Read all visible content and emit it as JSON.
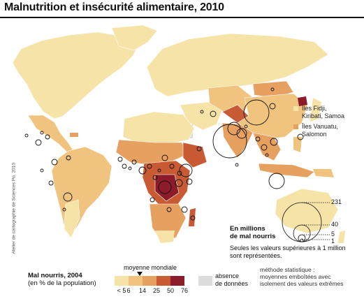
{
  "title": "Malnutrition et insécurité alimentaire, 2010",
  "credit": "Atelier de cartographie de Sciences Po, 2010",
  "islands": [
    {
      "label_lines": [
        "Îles Fidji,",
        "Kiribati, Samoa"
      ],
      "color": "#f6e3a8"
    },
    {
      "label_lines": [
        "Îles Vanuatu,",
        "Salomon"
      ],
      "color": "#e6a060"
    }
  ],
  "legend": {
    "title": "Mal nourris, 2004",
    "subtitle": "(en % de la population)",
    "average_label": "moyenne mondiale",
    "classes": [
      {
        "tick": "< 5",
        "color": "#f6e3a8"
      },
      {
        "tick": "6",
        "color": "#f0c47f"
      },
      {
        "tick": "14",
        "color": "#e6a060"
      },
      {
        "tick": "25",
        "color": "#c85a34"
      },
      {
        "tick": "50",
        "color": "#8c1c2a"
      },
      {
        "tick": "76",
        "color": ""
      }
    ],
    "no_data_lines": [
      "absence",
      "de données"
    ],
    "no_data_color": "#dcdcdc",
    "method_lines": [
      "méthode statistique :",
      "moyennes emboîtées avec",
      "isolement des valeurs extrêmes"
    ]
  },
  "millions": {
    "title_lines": [
      "En millions",
      "de mal nourris"
    ],
    "note_lines": [
      "Seules les valeurs supérieures à 1 million",
      "sont représentées."
    ],
    "values": [
      "231",
      "40",
      "5",
      "1"
    ]
  },
  "colors": {
    "ocean": "#ffffff",
    "land_light": "#f6e3a8",
    "land_none": "#dcdcdc"
  }
}
